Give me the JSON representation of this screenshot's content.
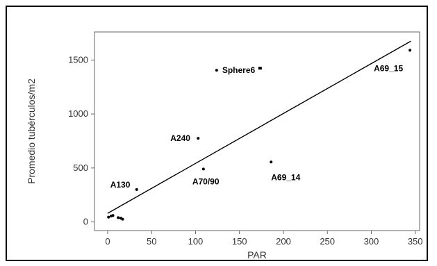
{
  "chart_data": {
    "type": "scatter",
    "title": "",
    "xlabel": "PAR",
    "ylabel": "Promedio tubérculos/m2",
    "xlim": [
      -15,
      355
    ],
    "ylim": [
      -80,
      1760
    ],
    "xticks": [
      0,
      50,
      100,
      150,
      200,
      250,
      300,
      350
    ],
    "yticks": [
      0,
      500,
      1000,
      1500
    ],
    "grid": false,
    "points": [
      {
        "x": 1,
        "y": 45,
        "label": ""
      },
      {
        "x": 4,
        "y": 55,
        "label": ""
      },
      {
        "x": 6,
        "y": 60,
        "label": ""
      },
      {
        "x": 12,
        "y": 40,
        "label": ""
      },
      {
        "x": 15,
        "y": 35,
        "label": ""
      },
      {
        "x": 17,
        "y": 25,
        "label": ""
      },
      {
        "x": 33,
        "y": 300,
        "label": "A130"
      },
      {
        "x": 103,
        "y": 775,
        "label": "A240"
      },
      {
        "x": 109,
        "y": 490,
        "label": "A70/90"
      },
      {
        "x": 124,
        "y": 1405,
        "label": "Sphere6"
      },
      {
        "x": 186,
        "y": 555,
        "label": "A69_14"
      },
      {
        "x": 344,
        "y": 1590,
        "label": "A69_15"
      }
    ],
    "fit_line": {
      "x": [
        0,
        345
      ],
      "y": [
        80,
        1675
      ]
    }
  }
}
